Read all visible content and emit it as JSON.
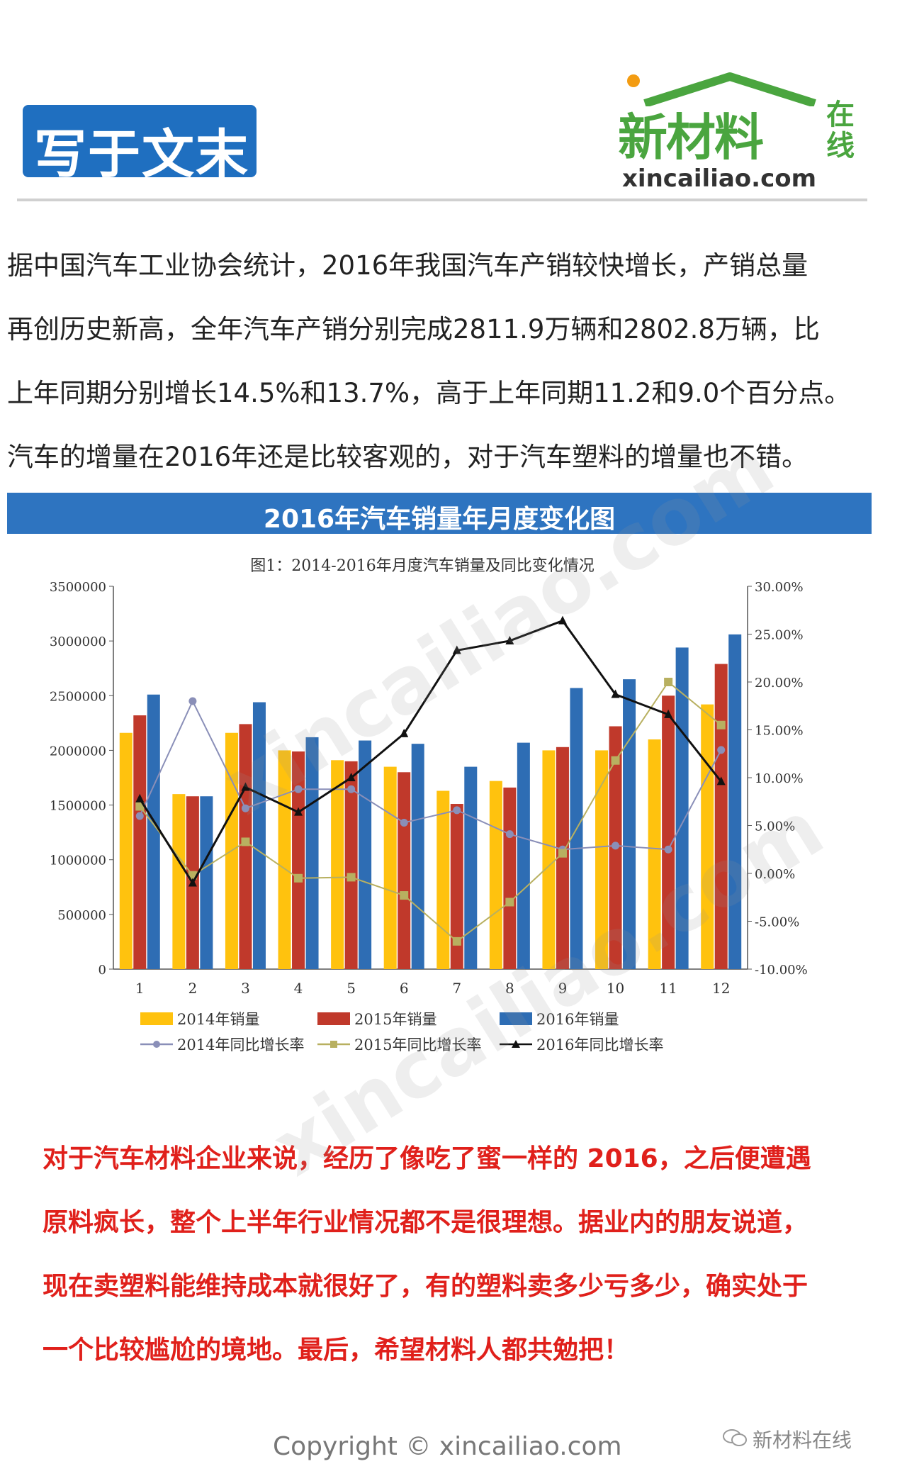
{
  "header": {
    "badge": "写于文末"
  },
  "logo": {
    "name": "新材料",
    "tag": "在线",
    "url": "xincailiao.com"
  },
  "intro": [
    "据中国汽车工业协会统计，2016年我国汽车产销较快增长，产销总量",
    "再创历史新高，全年汽车产销分别完成2811.9万辆和2802.8万辆，比",
    "上年同期分别增长14.5%和13.7%，高于上年同期11.2和9.0个百分点。",
    "汽车的增量在2016年还是比较客观的，对于汽车塑料的增量也不错。"
  ],
  "chart_banner": "2016年汽车销量年月度变化图",
  "chart_data": {
    "type": "bar",
    "title": "图1：2014-2016年月度汽车销量及同比变化情况",
    "categories": [
      "1",
      "2",
      "3",
      "4",
      "5",
      "6",
      "7",
      "8",
      "9",
      "10",
      "11",
      "12"
    ],
    "ylim": [
      0,
      3500000
    ],
    "y_ticks": [
      "0",
      "500000",
      "1000000",
      "1500000",
      "2000000",
      "2500000",
      "3000000",
      "3500000"
    ],
    "y2lim": [
      -10,
      30
    ],
    "y2_ticks": [
      "-10.00%",
      "-5.00%",
      "0.00%",
      "5.00%",
      "10.00%",
      "15.00%",
      "20.00%",
      "25.00%",
      "30.00%"
    ],
    "series": [
      {
        "name": "2014年销量",
        "kind": "bar",
        "color": "#ffc20e",
        "values": [
          2160000,
          1600000,
          2160000,
          2000000,
          1910000,
          1850000,
          1630000,
          1720000,
          2000000,
          2000000,
          2100000,
          2420000
        ]
      },
      {
        "name": "2015年销量",
        "kind": "bar",
        "color": "#c0392b",
        "values": [
          2320000,
          1580000,
          2240000,
          1990000,
          1900000,
          1800000,
          1510000,
          1660000,
          2030000,
          2220000,
          2500000,
          2790000
        ]
      },
      {
        "name": "2016年销量",
        "kind": "bar",
        "color": "#2e6db4",
        "values": [
          2510000,
          1580000,
          2440000,
          2120000,
          2090000,
          2060000,
          1850000,
          2070000,
          2570000,
          2650000,
          2940000,
          3060000
        ]
      },
      {
        "name": "2014年同比增长率",
        "kind": "line",
        "axis": "right",
        "color": "#8a8fb8",
        "marker": "circle",
        "values": [
          6.0,
          18.0,
          6.8,
          8.8,
          8.8,
          5.3,
          6.6,
          4.1,
          2.5,
          2.9,
          2.5,
          12.9
        ]
      },
      {
        "name": "2015年同比增长率",
        "kind": "line",
        "axis": "right",
        "color": "#b8b060",
        "marker": "square",
        "values": [
          7.0,
          -0.2,
          3.3,
          -0.5,
          -0.4,
          -2.3,
          -7.1,
          -3.0,
          2.1,
          11.8,
          20.0,
          15.5
        ]
      },
      {
        "name": "2016年同比增长率",
        "kind": "line",
        "axis": "right",
        "color": "#111111",
        "marker": "triangle",
        "values": [
          7.8,
          -1.0,
          9.0,
          6.4,
          10.0,
          14.6,
          23.3,
          24.3,
          26.4,
          18.7,
          16.6,
          9.6
        ]
      }
    ],
    "legend_position": "bottom",
    "grid": false
  },
  "outro": [
    "对于汽车材料企业来说，经历了像吃了蜜一样的 2016，之后便遭遇",
    "原料疯长，整个上半年行业情况都不是很理想。据业内的朋友说道，",
    "现在卖塑料能维持成本就很好了，有的塑料卖多少亏多少，确实处于",
    "一个比较尴尬的境地。最后，希望材料人都共勉把！"
  ],
  "copyright": "Copyright © xincailiao.com",
  "wechat_account": "新材料在线",
  "watermark": "xincailiao.com"
}
